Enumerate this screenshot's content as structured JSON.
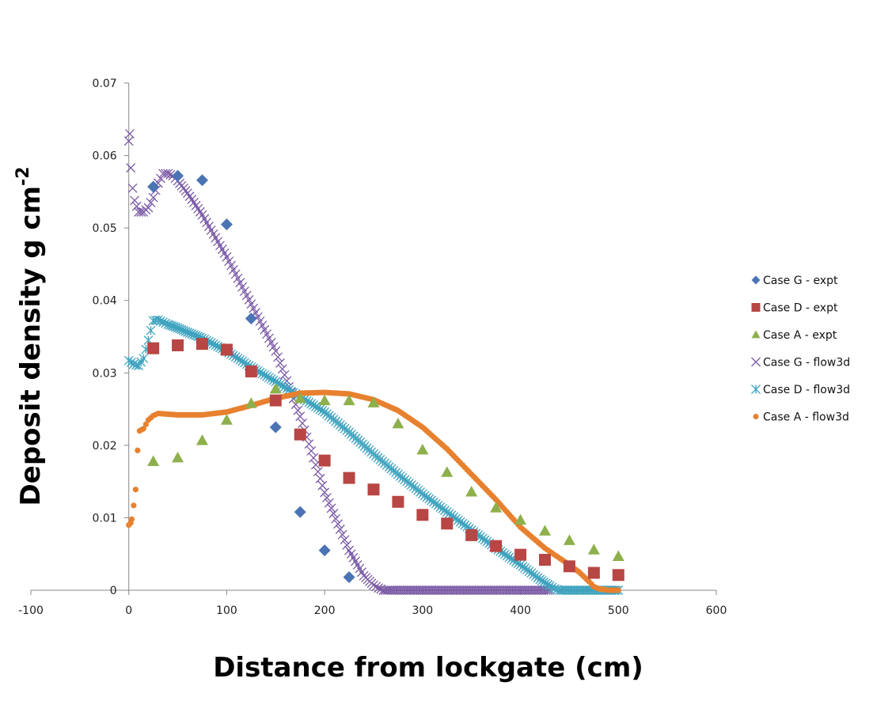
{
  "chart_data": {
    "type": "scatter",
    "title": "",
    "xlabel": "Distance from lockgate (cm)",
    "ylabel_main": "Deposit density g cm",
    "ylabel_sup": "-2",
    "xlim": [
      -100,
      600
    ],
    "ylim": [
      0,
      0.07
    ],
    "x_ticks": [
      -100,
      0,
      100,
      200,
      300,
      400,
      500,
      600
    ],
    "x_tick_labels": [
      "-100",
      "0",
      "100",
      "200",
      "300",
      "400",
      "500",
      "600"
    ],
    "y_ticks": [
      0,
      0.01,
      0.02,
      0.03,
      0.04,
      0.05,
      0.06,
      0.07
    ],
    "y_tick_labels": [
      "0",
      "0.01",
      "0.02",
      "0.03",
      "0.04",
      "0.05",
      "0.06",
      "0.07"
    ],
    "grid": false,
    "legend_position": "right",
    "series": [
      {
        "name": "Case G - expt",
        "marker": "diamond",
        "color": "#4a74b4",
        "x": [
          25,
          50,
          75,
          100,
          125,
          150,
          175,
          200,
          225
        ],
        "y": [
          0.0557,
          0.0572,
          0.0566,
          0.0505,
          0.0375,
          0.0225,
          0.0108,
          0.0055,
          0.0018
        ]
      },
      {
        "name": "Case D - expt",
        "marker": "square",
        "color": "#b84644",
        "x": [
          25,
          50,
          75,
          100,
          125,
          150,
          175,
          200,
          225,
          250,
          275,
          300,
          325,
          350,
          375,
          400,
          425,
          450,
          475,
          500
        ],
        "y": [
          0.0334,
          0.0338,
          0.034,
          0.0332,
          0.0302,
          0.0262,
          0.0215,
          0.0179,
          0.0155,
          0.0139,
          0.0122,
          0.0104,
          0.0092,
          0.0076,
          0.0061,
          0.0049,
          0.0042,
          0.0033,
          0.0024,
          0.0021
        ]
      },
      {
        "name": "Case A - expt",
        "marker": "triangle",
        "color": "#8db04c",
        "x": [
          25,
          50,
          75,
          100,
          125,
          150,
          175,
          200,
          225,
          250,
          275,
          300,
          325,
          350,
          375,
          400,
          425,
          450,
          475,
          500
        ],
        "y": [
          0.0178,
          0.0183,
          0.0207,
          0.0235,
          0.0258,
          0.0278,
          0.0265,
          0.0262,
          0.0262,
          0.0259,
          0.023,
          0.0194,
          0.0163,
          0.0136,
          0.0114,
          0.0097,
          0.0082,
          0.0069,
          0.0056,
          0.0047
        ]
      },
      {
        "name": "Case G - flow3d",
        "marker": "x",
        "color": "#7b5ba6",
        "x": [
          0,
          1,
          2,
          4,
          6,
          10,
          15,
          20,
          25,
          30,
          35,
          40,
          45,
          50,
          60,
          75,
          100,
          125,
          150,
          175,
          200,
          225,
          240,
          250,
          255,
          260,
          270,
          300,
          350,
          400,
          430
        ],
        "y": [
          0.062,
          0.063,
          0.0583,
          0.0555,
          0.0538,
          0.0522,
          0.0522,
          0.0528,
          0.0542,
          0.0562,
          0.0575,
          0.0575,
          0.0572,
          0.0565,
          0.0548,
          0.0518,
          0.046,
          0.0395,
          0.033,
          0.024,
          0.0135,
          0.0055,
          0.002,
          0.0007,
          0.0003,
          0.0,
          0.0,
          0.0,
          0.0,
          0.0,
          0.0
        ]
      },
      {
        "name": "Case D - flow3d",
        "marker": "asterisk",
        "color": "#3ea3bf",
        "x": [
          0,
          5,
          10,
          15,
          20,
          25,
          30,
          35,
          40,
          50,
          60,
          75,
          100,
          125,
          150,
          175,
          200,
          225,
          250,
          275,
          300,
          325,
          350,
          375,
          400,
          420,
          430,
          435,
          440,
          460,
          480,
          500
        ],
        "y": [
          0.0317,
          0.0312,
          0.031,
          0.032,
          0.0345,
          0.0372,
          0.0373,
          0.037,
          0.0367,
          0.0362,
          0.0356,
          0.0348,
          0.033,
          0.0308,
          0.0288,
          0.0267,
          0.0246,
          0.0218,
          0.0188,
          0.016,
          0.0133,
          0.0108,
          0.0083,
          0.0058,
          0.0035,
          0.0015,
          0.0006,
          0.0002,
          0.0,
          0.0,
          0.0,
          0.0
        ]
      },
      {
        "name": "Case A - flow3d",
        "marker": "circle",
        "color": "#e7812f",
        "x": [
          0,
          2,
          3,
          5,
          7,
          9,
          11,
          15,
          20,
          25,
          30,
          40,
          50,
          75,
          100,
          125,
          150,
          175,
          200,
          225,
          250,
          275,
          300,
          325,
          350,
          375,
          400,
          425,
          450,
          460,
          470,
          475,
          480,
          490,
          500
        ],
        "y": [
          0.009,
          0.0093,
          0.0098,
          0.0117,
          0.0139,
          0.0193,
          0.022,
          0.0223,
          0.0235,
          0.0241,
          0.0244,
          0.0243,
          0.0242,
          0.0242,
          0.0246,
          0.0255,
          0.0265,
          0.0272,
          0.0273,
          0.0271,
          0.0263,
          0.0248,
          0.0225,
          0.0195,
          0.016,
          0.0125,
          0.0087,
          0.0058,
          0.0035,
          0.0025,
          0.0012,
          0.0005,
          0.0002,
          0.0,
          0.0
        ]
      }
    ]
  }
}
